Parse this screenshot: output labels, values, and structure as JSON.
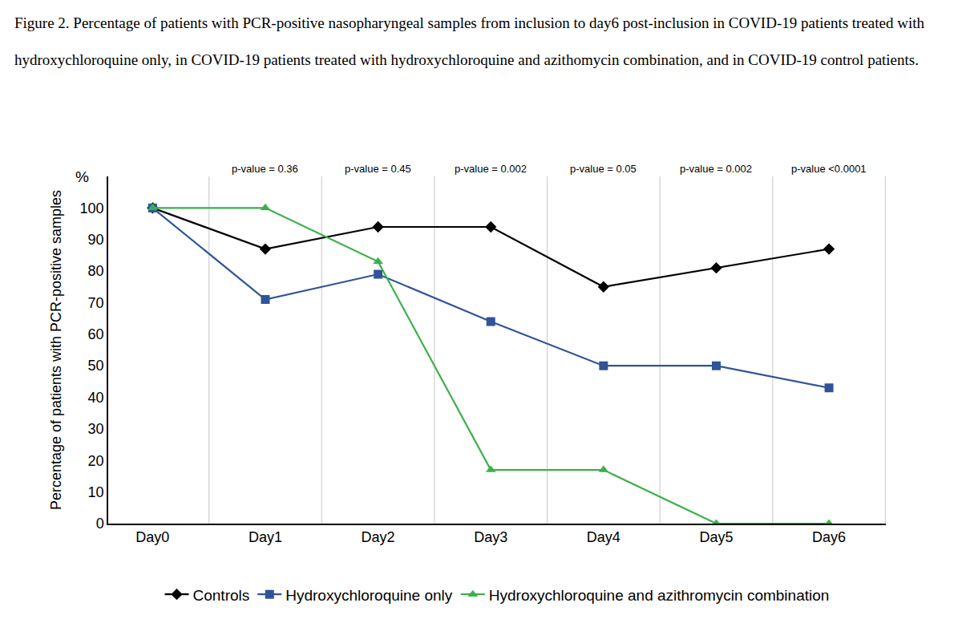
{
  "chart_data": {
    "type": "line",
    "title": "Figure 2. Percentage of patients with PCR-positive nasopharyngeal samples from inclusion to day6 post-inclusion in COVID-19 patients treated with hydroxychloroquine only, in COVID-19 patients treated with hydroxychloroquine and azithomycin combination, and in COVID-19 control patients.",
    "y_label": "Percentage of patients with PCR-positive samples",
    "y_axis_unit": "%",
    "categories": [
      "Day0",
      "Day1",
      "Day2",
      "Day3",
      "Day4",
      "Day5",
      "Day6"
    ],
    "series": [
      {
        "name": "Controls",
        "color": "#000000",
        "marker": "diamond",
        "values": [
          100,
          87,
          94,
          94,
          75,
          81,
          87
        ]
      },
      {
        "name": "Hydroxychloroquine only",
        "color": "#2f5597",
        "marker": "square",
        "values": [
          100,
          71,
          79,
          64,
          50,
          50,
          43
        ]
      },
      {
        "name": "Hydroxychloroquine and azithromycin combination",
        "color": "#3cb04a",
        "marker": "triangle-up",
        "values": [
          100,
          100,
          83,
          17,
          17,
          0,
          0
        ]
      }
    ],
    "annotations": [
      {
        "x": "Day1",
        "text": "p-value = 0.36"
      },
      {
        "x": "Day2",
        "text": "p-value = 0.45"
      },
      {
        "x": "Day3",
        "text": "p-value = 0.002"
      },
      {
        "x": "Day4",
        "text": "p-value = 0.05"
      },
      {
        "x": "Day5",
        "text": "p-value = 0.002"
      },
      {
        "x": "Day6",
        "text": "p-value <0.0001"
      }
    ],
    "ylim": [
      0,
      110
    ],
    "yticks": [
      0,
      10,
      20,
      30,
      40,
      50,
      60,
      70,
      80,
      90,
      100
    ],
    "grid": true,
    "legend": "bottom"
  }
}
